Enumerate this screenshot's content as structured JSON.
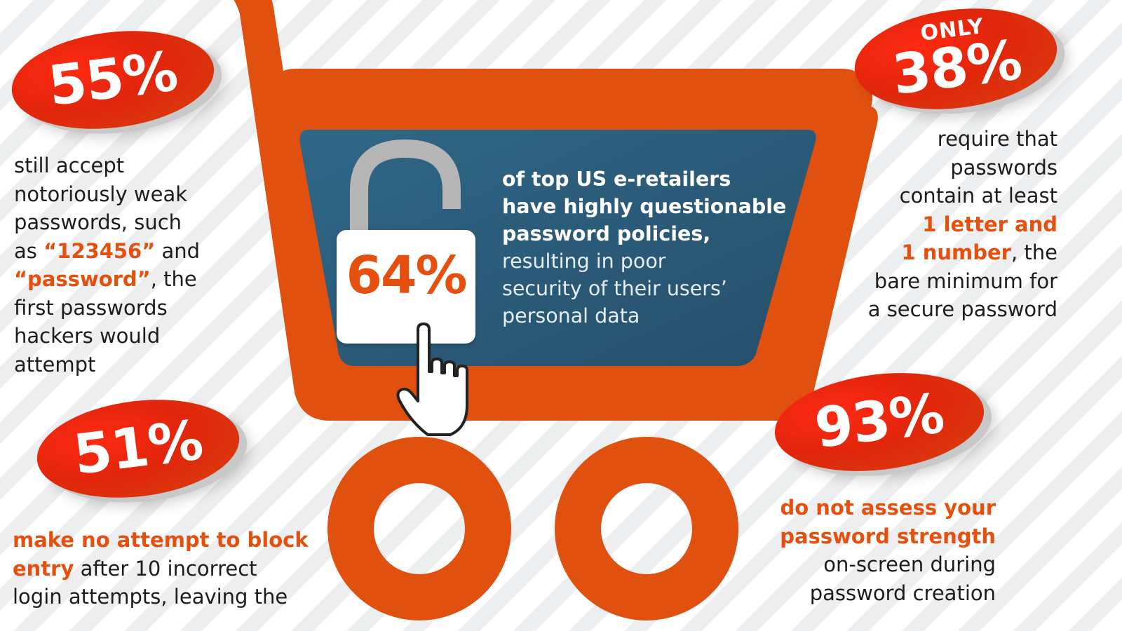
{
  "stats": {
    "s55": {
      "value": "55%",
      "line1": "still accept",
      "line2": "notoriously weak",
      "line3": "passwords, such",
      "line4_pre": "as ",
      "line4_hl": "“123456”",
      "line4_post": " and",
      "line5_hl": "“password”",
      "line5_post": ", the",
      "line6": "first passwords",
      "line7": "hackers would",
      "line8": "attempt"
    },
    "s38": {
      "prefix": "ONLY",
      "value": "38%",
      "line1": "require that",
      "line2": "passwords",
      "line3": "contain at least",
      "line4_hl": "1 letter and",
      "line5_hl": "1 number",
      "line5_post": ", the",
      "line6": "bare minimum for",
      "line7": "a secure password"
    },
    "s64": {
      "value": "64%",
      "strong1": "of top US e-retailers",
      "strong2": "have highly questionable",
      "strong3": "password policies,",
      "light1": "resulting in poor",
      "light2": "security of their users’",
      "light3": "personal data"
    },
    "s51": {
      "value": "51%",
      "hl1": "make no attempt to block",
      "hl2": "entry",
      "line2_post": " after 10 incorrect",
      "line3": "login attempts, leaving the"
    },
    "s93": {
      "value": "93%",
      "hl1": "do not assess your",
      "hl2": "password strength",
      "line3": "on-screen during",
      "line4": "password creation"
    }
  },
  "colors": {
    "orange": "#e5500f",
    "oval_red": "#e0260c",
    "panel_blue": "#2d6180",
    "lock_shackle": "#b5b5b5"
  },
  "icons": [
    "shopping-cart-icon",
    "padlock-icon",
    "hand-cursor-icon"
  ]
}
